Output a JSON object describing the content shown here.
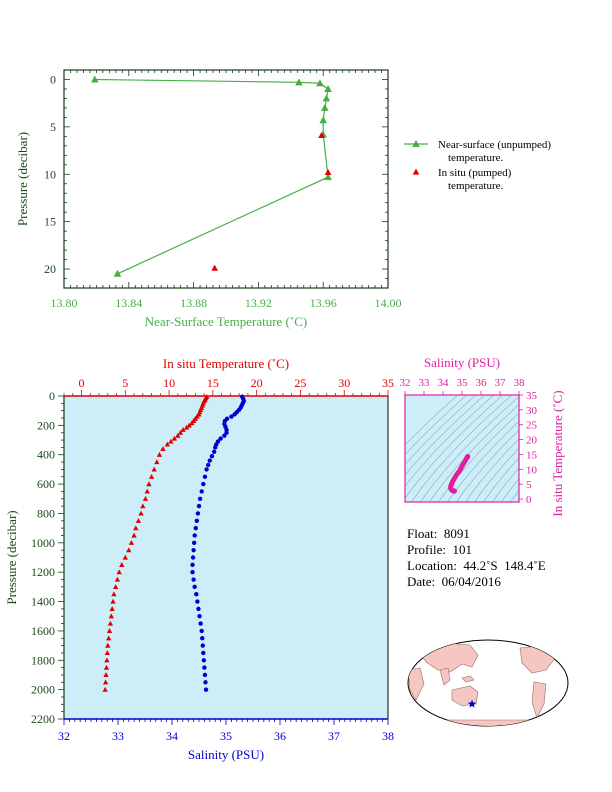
{
  "colors": {
    "green": "#44b044",
    "red": "#e00000",
    "blue": "#0000d0",
    "magenta": "#dd1fa0",
    "panel_bg": "#cdeef8",
    "text_dark": "#1a4a1a"
  },
  "chart_data": [
    {
      "type": "line",
      "xlabel": "Near-Surface Temperature (˚C)",
      "ylabel": "Pressure (decibar)",
      "xlim": [
        13.8,
        14.0
      ],
      "ylim": [
        22,
        -1
      ],
      "xticks": [
        13.8,
        13.84,
        13.88,
        13.92,
        13.96,
        14.0
      ],
      "xtick_labels": [
        "13.80",
        "13.84",
        "13.88",
        "13.92",
        "13.96",
        "14.00"
      ],
      "yticks": [
        0,
        5,
        10,
        15,
        20
      ],
      "legend_position": "right",
      "series": [
        {
          "name": "Near-surface (unpumped) temperature.",
          "legend_lines": [
            "Near-surface (unpumped)",
            "temperature."
          ],
          "points": [
            [
              13.819,
              0
            ],
            [
              13.945,
              0.3
            ],
            [
              13.958,
              0.4
            ],
            [
              13.963,
              1.0
            ],
            [
              13.962,
              2.0
            ],
            [
              13.961,
              3.0
            ],
            [
              13.96,
              4.3
            ],
            [
              13.96,
              5.8
            ],
            [
              13.963,
              10.3
            ],
            [
              13.833,
              20.5
            ]
          ]
        },
        {
          "name": "In situ (pumped) temperature.",
          "legend_lines": [
            "In situ (pumped)",
            "temperature."
          ],
          "points": [
            [
              13.959,
              5.9
            ],
            [
              13.963,
              9.8
            ],
            [
              13.893,
              19.9
            ]
          ]
        }
      ]
    },
    {
      "type": "line",
      "x_top_label": "In situ Temperature (˚C)",
      "x_bottom_label": "Salinity (PSU)",
      "ylabel": "Pressure (decibar)",
      "temp_lim": [
        -2,
        35
      ],
      "temp_ticks": [
        0,
        5,
        10,
        15,
        20,
        25,
        30,
        35
      ],
      "sal_lim": [
        32,
        38
      ],
      "sal_ticks": [
        32,
        33,
        34,
        35,
        36,
        37,
        38
      ],
      "ylim": [
        2200,
        0
      ],
      "yticks": [
        0,
        200,
        400,
        600,
        800,
        1000,
        1200,
        1400,
        1600,
        1800,
        2000,
        2200
      ],
      "series": [
        {
          "name": "temperature",
          "points": [
            [
              14.3,
              5
            ],
            [
              14.2,
              15
            ],
            [
              14.1,
              25
            ],
            [
              14.0,
              35
            ],
            [
              13.9,
              50
            ],
            [
              13.8,
              65
            ],
            [
              13.7,
              80
            ],
            [
              13.6,
              95
            ],
            [
              13.5,
              110
            ],
            [
              13.4,
              125
            ],
            [
              13.2,
              140
            ],
            [
              13.0,
              155
            ],
            [
              12.8,
              170
            ],
            [
              12.6,
              185
            ],
            [
              12.3,
              200
            ],
            [
              12.0,
              215
            ],
            [
              11.6,
              230
            ],
            [
              11.3,
              250
            ],
            [
              11.0,
              270
            ],
            [
              10.6,
              290
            ],
            [
              10.2,
              310
            ],
            [
              9.8,
              330
            ],
            [
              9.3,
              360
            ],
            [
              8.9,
              400
            ],
            [
              8.6,
              450
            ],
            [
              8.3,
              500
            ],
            [
              8.0,
              550
            ],
            [
              7.7,
              600
            ],
            [
              7.5,
              650
            ],
            [
              7.3,
              700
            ],
            [
              7.0,
              750
            ],
            [
              6.8,
              800
            ],
            [
              6.5,
              850
            ],
            [
              6.2,
              900
            ],
            [
              6.0,
              950
            ],
            [
              5.7,
              1000
            ],
            [
              5.4,
              1050
            ],
            [
              5.0,
              1100
            ],
            [
              4.6,
              1150
            ],
            [
              4.3,
              1200
            ],
            [
              4.1,
              1250
            ],
            [
              3.9,
              1300
            ],
            [
              3.7,
              1350
            ],
            [
              3.6,
              1400
            ],
            [
              3.5,
              1450
            ],
            [
              3.4,
              1500
            ],
            [
              3.3,
              1550
            ],
            [
              3.2,
              1600
            ],
            [
              3.1,
              1650
            ],
            [
              3.0,
              1700
            ],
            [
              2.95,
              1750
            ],
            [
              2.9,
              1800
            ],
            [
              2.85,
              1850
            ],
            [
              2.8,
              1900
            ],
            [
              2.75,
              1950
            ],
            [
              2.7,
              2000
            ]
          ]
        },
        {
          "name": "salinity",
          "points": [
            [
              35.3,
              5
            ],
            [
              35.32,
              20
            ],
            [
              35.33,
              35
            ],
            [
              35.31,
              50
            ],
            [
              35.29,
              65
            ],
            [
              35.27,
              80
            ],
            [
              35.24,
              95
            ],
            [
              35.2,
              110
            ],
            [
              35.16,
              125
            ],
            [
              35.1,
              140
            ],
            [
              35.02,
              155
            ],
            [
              34.98,
              170
            ],
            [
              34.97,
              190
            ],
            [
              34.99,
              210
            ],
            [
              35.01,
              230
            ],
            [
              35.01,
              250
            ],
            [
              34.97,
              270
            ],
            [
              34.9,
              290
            ],
            [
              34.85,
              310
            ],
            [
              34.82,
              330
            ],
            [
              34.8,
              350
            ],
            [
              34.78,
              380
            ],
            [
              34.74,
              410
            ],
            [
              34.7,
              440
            ],
            [
              34.67,
              470
            ],
            [
              34.64,
              500
            ],
            [
              34.61,
              550
            ],
            [
              34.58,
              600
            ],
            [
              34.55,
              650
            ],
            [
              34.52,
              700
            ],
            [
              34.5,
              750
            ],
            [
              34.48,
              800
            ],
            [
              34.46,
              850
            ],
            [
              34.44,
              900
            ],
            [
              34.42,
              950
            ],
            [
              34.41,
              1000
            ],
            [
              34.4,
              1050
            ],
            [
              34.39,
              1100
            ],
            [
              34.38,
              1150
            ],
            [
              34.38,
              1200
            ],
            [
              34.4,
              1250
            ],
            [
              34.42,
              1300
            ],
            [
              34.45,
              1350
            ],
            [
              34.47,
              1400
            ],
            [
              34.49,
              1450
            ],
            [
              34.51,
              1500
            ],
            [
              34.53,
              1550
            ],
            [
              34.55,
              1600
            ],
            [
              34.56,
              1650
            ],
            [
              34.57,
              1700
            ],
            [
              34.58,
              1750
            ],
            [
              34.59,
              1800
            ],
            [
              34.6,
              1850
            ],
            [
              34.61,
              1900
            ],
            [
              34.62,
              1950
            ],
            [
              34.63,
              2000
            ]
          ]
        }
      ]
    },
    {
      "type": "scatter",
      "xlabel": "Salinity (PSU)",
      "ylabel": "In situ Temperature (˚C)",
      "xlim": [
        32,
        38
      ],
      "ylim": [
        -1,
        35
      ],
      "xticks": [
        32,
        33,
        34,
        35,
        36,
        37,
        38
      ],
      "yticks": [
        0,
        5,
        10,
        15,
        20,
        25,
        30,
        35
      ],
      "points": [
        [
          35.3,
          14.3
        ],
        [
          35.25,
          13.8
        ],
        [
          35.18,
          13.0
        ],
        [
          35.1,
          12.2
        ],
        [
          35.02,
          11.3
        ],
        [
          34.95,
          10.4
        ],
        [
          34.88,
          9.6
        ],
        [
          34.8,
          8.9
        ],
        [
          34.72,
          8.2
        ],
        [
          34.64,
          7.4
        ],
        [
          34.57,
          6.6
        ],
        [
          34.5,
          5.8
        ],
        [
          34.45,
          5.0
        ],
        [
          34.41,
          4.3
        ],
        [
          34.4,
          3.7
        ],
        [
          34.43,
          3.3
        ],
        [
          34.47,
          3.0
        ],
        [
          34.52,
          2.8
        ],
        [
          34.57,
          2.7
        ],
        [
          34.6,
          2.7
        ]
      ]
    }
  ],
  "info": {
    "float": "Float:  8091",
    "profile": "Profile:  101",
    "location": "Location:  44.2˚S  148.4˚E",
    "date": "Date:  06/04/2016"
  },
  "map": {
    "marker": "float-position-star"
  }
}
